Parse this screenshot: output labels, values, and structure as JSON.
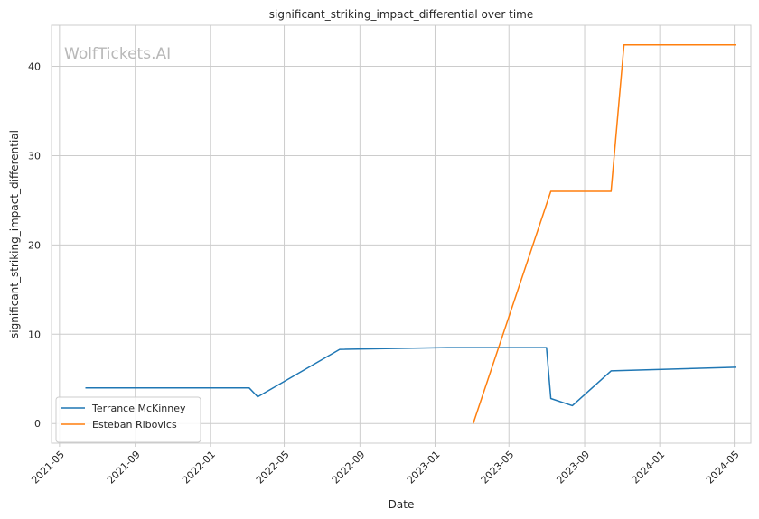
{
  "chart_data": {
    "type": "line",
    "title": "significant_striking_impact_differential over time",
    "xlabel": "Date",
    "ylabel": "significant_striking_impact_differential",
    "watermark": "WolfTickets.AI",
    "xlim": [
      "2021-04-18",
      "2024-05-28"
    ],
    "ylim": [
      -2.2,
      44.6
    ],
    "x_ticks": [
      "2021-05-01",
      "2021-09-01",
      "2022-01-01",
      "2022-05-01",
      "2022-09-01",
      "2023-01-01",
      "2023-05-01",
      "2023-09-01",
      "2024-01-01",
      "2024-05-01"
    ],
    "x_tick_labels": [
      "2021-05",
      "2021-09",
      "2022-01",
      "2022-05",
      "2022-09",
      "2023-01",
      "2023-05",
      "2023-09",
      "2024-01",
      "2024-05"
    ],
    "y_ticks": [
      0,
      10,
      20,
      30,
      40
    ],
    "y_tick_labels": [
      "0",
      "10",
      "20",
      "30",
      "40"
    ],
    "grid": true,
    "legend_position": "lower-left",
    "series": [
      {
        "name": "Terrance McKinney",
        "color": "#1f77b4",
        "points": [
          {
            "x": "2021-06-12",
            "y": 4.0
          },
          {
            "x": "2022-03-05",
            "y": 4.0
          },
          {
            "x": "2022-03-19",
            "y": 3.0
          },
          {
            "x": "2022-07-30",
            "y": 8.3
          },
          {
            "x": "2023-01-21",
            "y": 8.5
          },
          {
            "x": "2023-07-01",
            "y": 8.5
          },
          {
            "x": "2023-07-08",
            "y": 2.8
          },
          {
            "x": "2023-08-12",
            "y": 2.0
          },
          {
            "x": "2023-10-14",
            "y": 5.9
          },
          {
            "x": "2024-05-04",
            "y": 6.3
          }
        ]
      },
      {
        "name": "Esteban Ribovics",
        "color": "#ff7f0e",
        "points": [
          {
            "x": "2023-03-04",
            "y": 0.0
          },
          {
            "x": "2023-07-08",
            "y": 26.0
          },
          {
            "x": "2023-10-14",
            "y": 26.0
          },
          {
            "x": "2023-11-04",
            "y": 42.4
          },
          {
            "x": "2024-05-04",
            "y": 42.4
          }
        ]
      }
    ]
  }
}
